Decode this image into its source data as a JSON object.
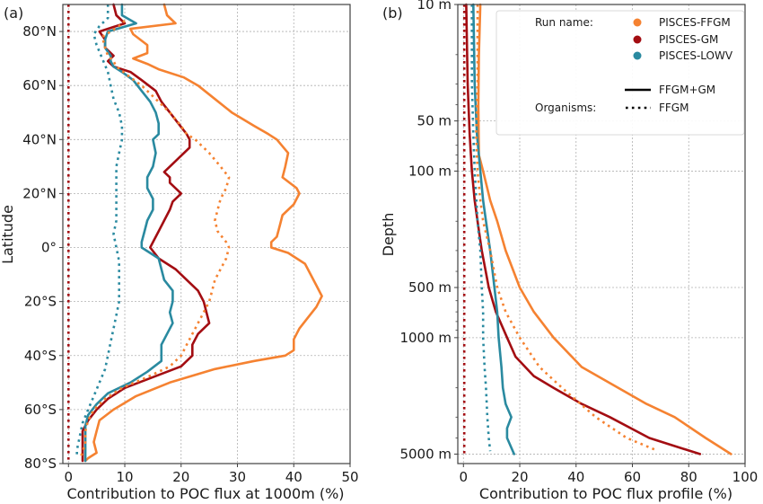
{
  "colors": {
    "PISCES-FFGM": "#f58231",
    "PISCES-GM": "#a30d12",
    "PISCES-LOWV": "#2a8aa0"
  },
  "legend": {
    "run_title": "Run name:",
    "organisms_title": "Organisms:",
    "runs": [
      "PISCES-FFGM",
      "PISCES-GM",
      "PISCES-LOWV"
    ],
    "styles": [
      {
        "label": "FFGM+GM",
        "style": "solid"
      },
      {
        "label": "FFGM",
        "style": "dotted"
      }
    ]
  },
  "chart_data": [
    {
      "type": "line",
      "panel_label": "(a)",
      "title": "",
      "xlabel": "Contribution to POC flux at 1000m (%)",
      "ylabel": "Latitude",
      "xlim": [
        -1,
        50
      ],
      "ylim": [
        -80,
        90
      ],
      "xticks": [
        0,
        10,
        20,
        30,
        40,
        50
      ],
      "xtick_labels": [
        "0",
        "10",
        "20",
        "30",
        "40",
        "50"
      ],
      "yticks": [
        80,
        60,
        40,
        20,
        0,
        -20,
        -40,
        -60,
        -80
      ],
      "ytick_labels": [
        "80°N",
        "60°N",
        "40°N",
        "20°N",
        "0°",
        "20°S",
        "40°S",
        "60°S",
        "80°S"
      ],
      "grid": true,
      "series": [
        {
          "name": "PISCES-FFGM",
          "style": "solid",
          "lat": [
            90,
            86,
            83,
            81,
            79,
            75,
            72,
            70,
            68,
            66,
            63,
            60,
            55,
            50,
            45,
            42,
            40,
            35,
            30,
            26,
            22,
            20,
            16,
            12,
            8,
            4,
            2,
            0,
            -2,
            -6,
            -10,
            -14,
            -18,
            -22,
            -26,
            -30,
            -34,
            -38,
            -40,
            -42,
            -45,
            -50,
            -55,
            -60,
            -64,
            -68,
            -72,
            -76,
            -78,
            -79
          ],
          "values": [
            17,
            17.5,
            19,
            11,
            11.5,
            14,
            14,
            11.5,
            14,
            16,
            20.5,
            23,
            26,
            29,
            33,
            35.5,
            37,
            39,
            38.5,
            38,
            40.5,
            41,
            40,
            38,
            37.5,
            37,
            36,
            36,
            39,
            42,
            43,
            44,
            45,
            44,
            42.5,
            41,
            40,
            40,
            38.5,
            33,
            26,
            18,
            12,
            8,
            5.5,
            5,
            4.5,
            5,
            3.5,
            3
          ]
        },
        {
          "name": "PISCES-GM",
          "style": "solid",
          "lat": [
            90,
            86,
            83,
            80,
            77,
            74,
            71,
            69,
            67,
            65,
            62,
            58,
            54,
            50,
            46,
            42,
            40,
            37,
            34,
            30,
            28,
            26,
            24,
            22,
            20,
            17,
            14,
            10,
            6,
            2,
            0,
            -4,
            -8,
            -12,
            -16,
            -20,
            -24,
            -28,
            -32,
            -36,
            -40,
            -42,
            -44,
            -48,
            -52,
            -56,
            -60,
            -64,
            -68,
            -72,
            -76,
            -78,
            -79
          ],
          "values": [
            8,
            8.5,
            10,
            5.5,
            6.5,
            6.5,
            8,
            7,
            8,
            11,
            13,
            15.5,
            16.5,
            18,
            19.5,
            21,
            21.5,
            21.5,
            20,
            18,
            17,
            18,
            18,
            19,
            20,
            18.5,
            18,
            17,
            16,
            15,
            14.5,
            16,
            19,
            21,
            23,
            24,
            24.5,
            25,
            23,
            22,
            22,
            21,
            20,
            15,
            10,
            7,
            5,
            3.5,
            2.5,
            2.5,
            2.5,
            2.5,
            2.5
          ]
        },
        {
          "name": "PISCES-LOWV",
          "style": "solid",
          "lat": [
            90,
            86,
            83,
            80,
            77,
            74,
            71,
            69,
            67,
            65,
            62,
            58,
            54,
            50,
            46,
            42,
            40,
            35,
            30,
            26,
            22,
            18,
            14,
            10,
            6,
            2,
            0,
            -4,
            -8,
            -12,
            -16,
            -20,
            -24,
            -28,
            -32,
            -36,
            -40,
            -42,
            -46,
            -50,
            -54,
            -58,
            -62,
            -66,
            -70,
            -74,
            -78,
            -79
          ],
          "values": [
            9.5,
            9.5,
            12,
            7,
            6.5,
            6.5,
            7.5,
            7.5,
            8,
            9.5,
            11.5,
            13,
            14.5,
            15.5,
            16,
            16,
            15,
            15.5,
            15,
            14,
            14,
            15,
            15,
            14,
            13.5,
            13,
            13,
            16,
            16.5,
            17,
            18.5,
            18.5,
            18,
            18.5,
            17.5,
            16.5,
            16.5,
            16.5,
            14,
            11,
            7,
            5,
            3.5,
            3,
            3,
            3,
            3,
            3
          ]
        },
        {
          "name": "PISCES-FFGM",
          "style": "dotted",
          "lat": [
            84,
            82,
            78,
            74,
            71,
            69,
            67,
            63,
            60,
            55,
            50,
            45,
            42,
            40,
            35,
            30,
            26,
            22,
            18,
            14,
            10,
            6,
            2,
            0,
            -4,
            -8,
            -12,
            -16,
            -20,
            -24,
            -28,
            -32,
            -36,
            -40,
            -44,
            -48,
            -52,
            -56,
            -60,
            -64,
            -68,
            -72,
            -76,
            -78
          ],
          "values": [
            10,
            9,
            6,
            6.5,
            7,
            8,
            8.5,
            11,
            13,
            15.5,
            18,
            20,
            21,
            22.5,
            25,
            27,
            28.5,
            28,
            27,
            26.5,
            26,
            26.5,
            28,
            28.5,
            28,
            27,
            26,
            25.5,
            25,
            24,
            23,
            22,
            21,
            20,
            18,
            14,
            9.5,
            6.5,
            4.5,
            3.5,
            3,
            3,
            2.5,
            2
          ]
        },
        {
          "name": "PISCES-LOWV",
          "style": "dotted",
          "lat": [
            90,
            85,
            82,
            79,
            75,
            70,
            65,
            60,
            55,
            50,
            45,
            40,
            35,
            30,
            25,
            20,
            15,
            10,
            5,
            0,
            -5,
            -10,
            -15,
            -20,
            -25,
            -30,
            -35,
            -40,
            -45,
            -50,
            -55,
            -60,
            -65,
            -70,
            -75,
            -78
          ],
          "values": [
            7,
            7,
            5.5,
            4.5,
            5,
            6,
            7,
            7.5,
            8,
            9,
            9.5,
            9.5,
            9,
            8.5,
            8.5,
            8.5,
            8.5,
            8.5,
            8,
            8.5,
            9,
            9,
            9,
            9,
            8.5,
            8,
            7.5,
            7,
            6.5,
            5.5,
            4.5,
            3.5,
            2.5,
            2,
            1.5,
            1.5
          ]
        },
        {
          "name": "PISCES-GM",
          "style": "dotted",
          "lat": [
            90,
            -79
          ],
          "values": [
            0,
            0
          ]
        }
      ]
    },
    {
      "type": "line",
      "panel_label": "(b)",
      "title": "",
      "xlabel": "Contribution to POC flux profile (%)",
      "ylabel": "Depth",
      "xscale": "linear",
      "yscale": "log",
      "xlim": [
        -2,
        100
      ],
      "ylim": [
        10,
        5700
      ],
      "xticks": [
        0,
        20,
        40,
        60,
        80,
        100
      ],
      "xtick_labels": [
        "0",
        "20",
        "40",
        "60",
        "80",
        "100"
      ],
      "yticks": [
        10,
        50,
        100,
        500,
        1000,
        5000
      ],
      "ytick_labels": [
        "10 m",
        "50 m",
        "100 m",
        "500 m",
        "1000 m",
        "5000 m"
      ],
      "grid": true,
      "series": [
        {
          "name": "PISCES-FFGM",
          "style": "solid",
          "depth": [
            10,
            20,
            40,
            80,
            100,
            150,
            200,
            300,
            500,
            700,
            1000,
            1500,
            2000,
            2500,
            3000,
            4000,
            5000
          ],
          "values": [
            6,
            5.5,
            5.3,
            5.5,
            7,
            9.5,
            12,
            15,
            20,
            25,
            32,
            42,
            55,
            65,
            75,
            86,
            95
          ]
        },
        {
          "name": "PISCES-GM",
          "style": "solid",
          "depth": [
            10,
            30,
            60,
            100,
            150,
            200,
            300,
            500,
            700,
            1000,
            1300,
            1700,
            2000,
            2500,
            3000,
            4000,
            5000
          ],
          "values": [
            1,
            1.5,
            2.2,
            3,
            4,
            5,
            6.5,
            9,
            11.5,
            15.5,
            18.5,
            25,
            32,
            42,
            52,
            66,
            84
          ]
        },
        {
          "name": "PISCES-LOWV",
          "style": "solid",
          "depth": [
            10,
            30,
            60,
            100,
            150,
            200,
            300,
            500,
            700,
            1000,
            1500,
            2000,
            2500,
            3000,
            3500,
            4000,
            5000
          ],
          "values": [
            3.5,
            4,
            4.8,
            6,
            7,
            8,
            9.5,
            11,
            12,
            12.5,
            13.5,
            14,
            15,
            17,
            15.5,
            15.5,
            18
          ]
        },
        {
          "name": "PISCES-FFGM",
          "style": "dotted",
          "depth": [
            10,
            30,
            60,
            100,
            150,
            200,
            300,
            500,
            700,
            1000,
            1500,
            2000,
            3000,
            4000,
            4700
          ],
          "values": [
            5,
            5,
            4.5,
            5,
            6,
            7,
            9.5,
            12,
            15,
            20,
            27,
            35,
            47,
            58,
            68
          ]
        },
        {
          "name": "PISCES-LOWV",
          "style": "dotted",
          "depth": [
            10,
            30,
            60,
            100,
            200,
            300,
            500,
            700,
            1000,
            1500,
            2000,
            3000,
            4000,
            4800
          ],
          "values": [
            3,
            3,
            3.5,
            4,
            5,
            6,
            6.5,
            7,
            7,
            7.5,
            8,
            8.5,
            9,
            9.5
          ]
        },
        {
          "name": "PISCES-GM",
          "style": "dotted",
          "depth": [
            10,
            5000
          ],
          "values": [
            0.3,
            0.3
          ]
        }
      ]
    }
  ]
}
